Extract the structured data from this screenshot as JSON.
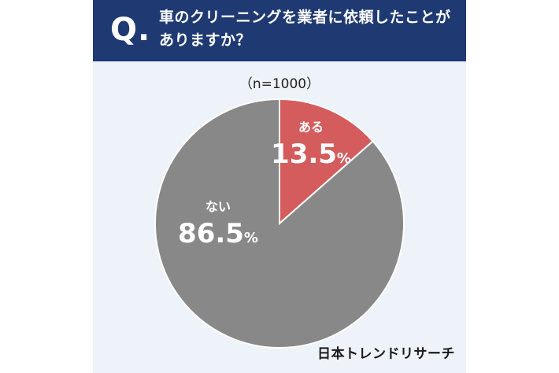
{
  "header": {
    "q_letter": "Q",
    "q_dot": ".",
    "question": "車のクリーニングを業者に依頼したことがありますか？"
  },
  "sample_label": "（n=1000）",
  "brand": "日本トレンドリサーチ",
  "colors": {
    "header_bg": "#1f3a73",
    "card_bg": "#eef2f9",
    "slice_yes": "#d45c5c",
    "slice_no": "#888888"
  },
  "chart_data": {
    "type": "pie",
    "title": "車のクリーニングを業者に依頼したことがありますか？",
    "start_angle_deg": 0,
    "direction": "clockwise",
    "slices": [
      {
        "label": "ある",
        "value": 13.5,
        "display": "13.5",
        "unit": "%",
        "color": "#d45c5c"
      },
      {
        "label": "ない",
        "value": 86.5,
        "display": "86.5",
        "unit": "%",
        "color": "#888888"
      }
    ]
  }
}
